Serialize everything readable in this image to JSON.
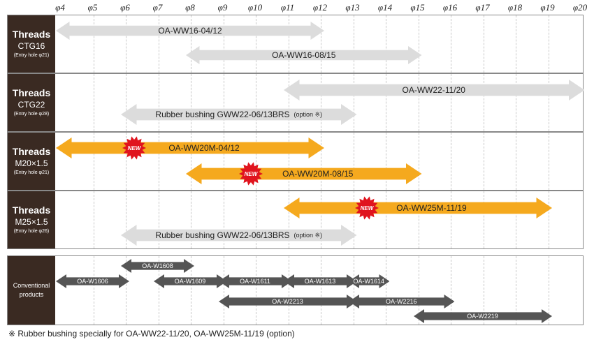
{
  "axis": {
    "ticks": [
      "φ4",
      "φ5",
      "φ6",
      "φ7",
      "φ8",
      "φ9",
      "φ10",
      "φ11",
      "φ12",
      "φ13",
      "φ14",
      "φ15",
      "φ16",
      "φ17",
      "φ18",
      "φ19",
      "φ20"
    ]
  },
  "sections": [
    {
      "title": "Threads",
      "sub": "CTG16",
      "note": "(Entry hole φ21)"
    },
    {
      "title": "Threads",
      "sub": "CTG22",
      "note": "(Entry hole φ28)"
    },
    {
      "title": "Threads",
      "sub": "M20×1.5",
      "note": "(Entry hole φ21)"
    },
    {
      "title": "Threads",
      "sub": "M25×1.5",
      "note": "(Entry hole φ26)"
    },
    {
      "title": "Conventional products"
    }
  ],
  "bars": [
    {
      "label": "OA-WW16-04/12",
      "range": [
        4,
        12
      ],
      "style": "gray"
    },
    {
      "label": "OA-WW16-08/15",
      "range": [
        8,
        15
      ],
      "style": "gray"
    },
    {
      "label": "OA-WW22-11/20",
      "range": [
        11,
        20
      ],
      "style": "gray"
    },
    {
      "label": "Rubber bushing GWW22-06/13BRS",
      "note": "(option ※)",
      "range": [
        6,
        13
      ],
      "style": "gray"
    },
    {
      "label": "OA-WW20M-04/12",
      "range": [
        4,
        12
      ],
      "style": "orange",
      "badge": "NEW"
    },
    {
      "label": "OA-WW20M-08/15",
      "range": [
        8,
        15
      ],
      "style": "orange",
      "badge": "NEW"
    },
    {
      "label": "OA-WW25M-11/19",
      "range": [
        11,
        19
      ],
      "style": "orange",
      "badge": "NEW"
    },
    {
      "label": "Rubber bushing  GWW22-06/13BRS",
      "note": "(option ※)",
      "range": [
        6,
        13
      ],
      "style": "gray"
    },
    {
      "label": "OA-W1608",
      "range": [
        6,
        8
      ],
      "style": "dark"
    },
    {
      "label": "OA-W1606",
      "range": [
        4,
        6
      ],
      "style": "dark"
    },
    {
      "label": "OA-W1609",
      "range": [
        7,
        9
      ],
      "style": "dark"
    },
    {
      "label": "OA-W1611",
      "range": [
        9,
        11
      ],
      "style": "dark"
    },
    {
      "label": "OA-W1613",
      "range": [
        11,
        13
      ],
      "style": "dark"
    },
    {
      "label": "OA-W1614",
      "range": [
        13,
        14
      ],
      "style": "dark"
    },
    {
      "label": "OA-W2213",
      "range": [
        9,
        13
      ],
      "style": "dark"
    },
    {
      "label": "OA-W2216",
      "range": [
        13,
        16
      ],
      "style": "dark"
    },
    {
      "label": "OA-W2219",
      "range": [
        15,
        19
      ],
      "style": "dark"
    }
  ],
  "colors": {
    "gray": "#dcdcdc",
    "orange": "#f5a91e",
    "dark": "#555555",
    "badge": "#e0141e"
  },
  "footnote": "※ Rubber bushing specially for OA-WW22-11/20, OA-WW25M-11/19 (option)"
}
